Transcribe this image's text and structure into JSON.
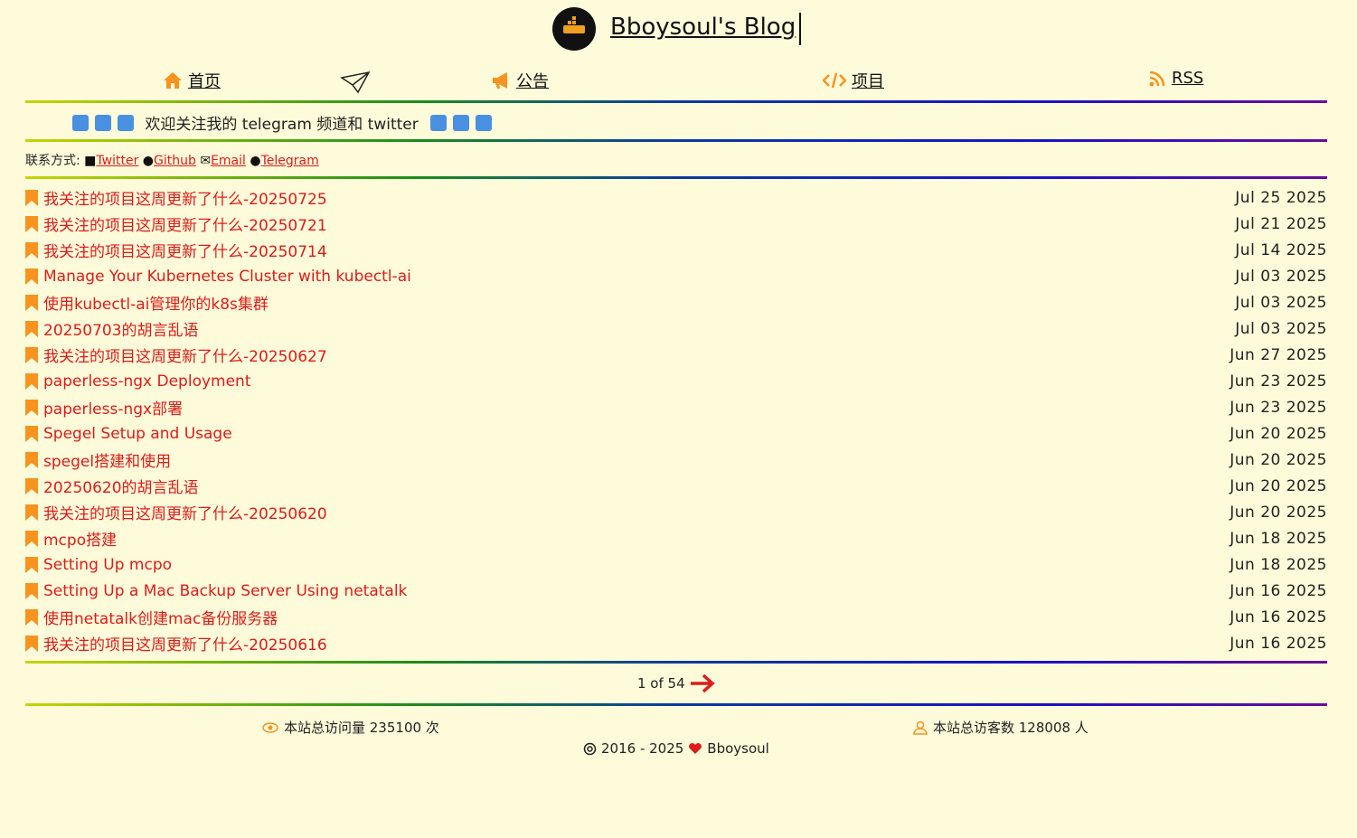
{
  "header": {
    "title": "Bboysoul's Blog"
  },
  "nav": [
    {
      "label": "首页"
    },
    {
      "label": "公告"
    },
    {
      "label": "项目"
    },
    {
      "label": "RSS"
    }
  ],
  "notice": "欢迎关注我的 telegram 频道和 twitter",
  "contact": {
    "label": "联系方式:",
    "links": [
      "Twitter",
      "Github",
      "Email",
      "Telegram"
    ]
  },
  "posts": [
    {
      "title": "我关注的项目这周更新了什么-20250725",
      "date": "Jul 25 2025"
    },
    {
      "title": "我关注的项目这周更新了什么-20250721",
      "date": "Jul 21 2025"
    },
    {
      "title": "我关注的项目这周更新了什么-20250714",
      "date": "Jul 14 2025"
    },
    {
      "title": "Manage Your Kubernetes Cluster with kubectl-ai",
      "date": "Jul 03 2025"
    },
    {
      "title": "使用kubectl-ai管理你的k8s集群",
      "date": "Jul 03 2025"
    },
    {
      "title": "20250703的胡言乱语",
      "date": "Jul 03 2025"
    },
    {
      "title": "我关注的项目这周更新了什么-20250627",
      "date": "Jun 27 2025"
    },
    {
      "title": "paperless-ngx Deployment",
      "date": "Jun 23 2025"
    },
    {
      "title": "paperless-ngx部署",
      "date": "Jun 23 2025"
    },
    {
      "title": "Spegel Setup and Usage",
      "date": "Jun 20 2025"
    },
    {
      "title": "spegel搭建和使用",
      "date": "Jun 20 2025"
    },
    {
      "title": "20250620的胡言乱语",
      "date": "Jun 20 2025"
    },
    {
      "title": "我关注的项目这周更新了什么-20250620",
      "date": "Jun 20 2025"
    },
    {
      "title": "mcpo搭建",
      "date": "Jun 18 2025"
    },
    {
      "title": "Setting Up mcpo",
      "date": "Jun 18 2025"
    },
    {
      "title": "Setting Up a Mac Backup Server Using netatalk",
      "date": "Jun 16 2025"
    },
    {
      "title": "使用netatalk创建mac备份服务器",
      "date": "Jun 16 2025"
    },
    {
      "title": "我关注的项目这周更新了什么-20250616",
      "date": "Jun 16 2025"
    }
  ],
  "pagination": "1 of 54",
  "footer": {
    "views": "本站总访问量 235100 次",
    "visitors": "本站总访客数 128008 人",
    "years": "2016 - 2025",
    "author": "Bboysoul"
  }
}
